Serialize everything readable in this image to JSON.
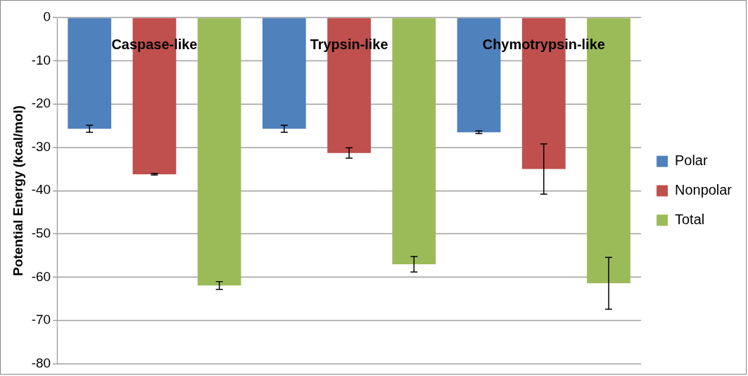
{
  "chart_data": {
    "type": "bar",
    "ylabel": "Potential Energy (kcal/mol)",
    "categories": [
      "Caspase-like",
      "Trypsin-like",
      "Chymotrypsin-like"
    ],
    "series": [
      {
        "name": "Polar",
        "color": "#4f81bd",
        "values": [
          -25.7,
          -25.7,
          -26.5
        ],
        "errors": [
          0.8,
          0.8,
          0.3
        ]
      },
      {
        "name": "Nonpolar",
        "color": "#c0504d",
        "values": [
          -36.2,
          -31.3,
          -35.0
        ],
        "errors": [
          0.2,
          1.2,
          5.8
        ]
      },
      {
        "name": "Total",
        "color": "#9bbb59",
        "values": [
          -61.9,
          -57.0,
          -61.4
        ],
        "errors": [
          0.9,
          1.8,
          6.0
        ]
      }
    ],
    "ylim": [
      -80,
      0
    ],
    "yticks": [
      -80,
      -70,
      -60,
      -50,
      -40,
      -30,
      -20,
      -10,
      0
    ],
    "grid": "y",
    "legend": "right"
  }
}
